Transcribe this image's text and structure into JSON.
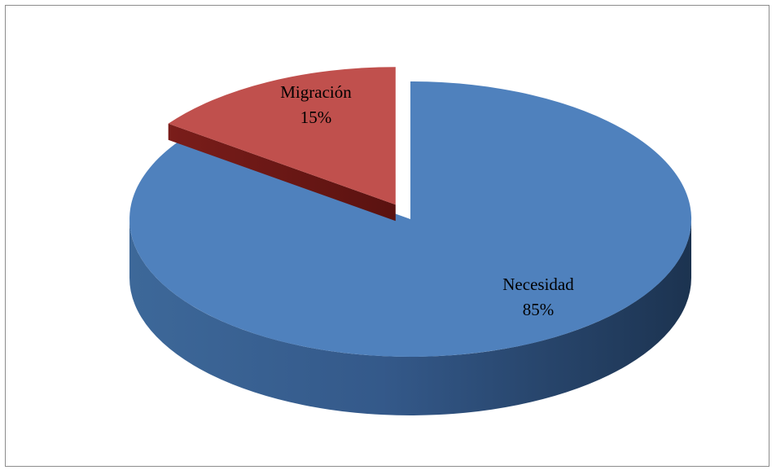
{
  "chart_data": {
    "type": "pie",
    "style": "3d-exploded",
    "title": "",
    "slices": [
      {
        "label": "Necesidad",
        "value": 85,
        "percent_text": "85%",
        "color": "#4f81bd",
        "exploded": false
      },
      {
        "label": "Migración",
        "value": 15,
        "percent_text": "15%",
        "color": "#c0504d",
        "exploded": true
      }
    ],
    "legend": "none"
  }
}
